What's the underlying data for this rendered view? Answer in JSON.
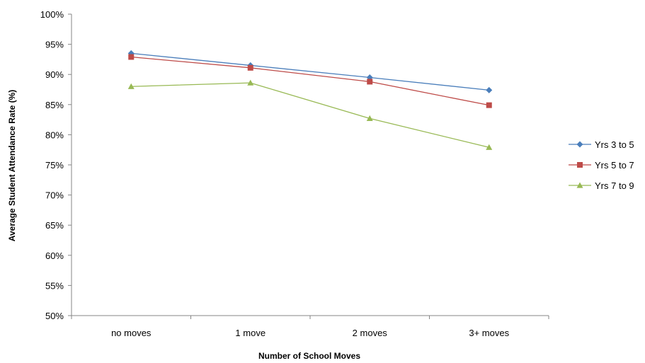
{
  "chart_data": {
    "type": "line",
    "title": "",
    "xlabel": "Number of School Moves",
    "ylabel": "Average Student Attendance Rate (%)",
    "categories": [
      "no moves",
      "1 move",
      "2 moves",
      "3+ moves"
    ],
    "ylim": [
      50,
      100
    ],
    "ytick_step": 5,
    "ytick_labels": [
      "50%",
      "55%",
      "60%",
      "65%",
      "70%",
      "75%",
      "80%",
      "85%",
      "90%",
      "95%",
      "100%"
    ],
    "grid": false,
    "legend_position": "right",
    "series": [
      {
        "name": "Yrs 3 to 5",
        "color": "#4A7EBB",
        "marker": "diamond",
        "values": [
          93.5,
          91.5,
          89.5,
          87.4
        ]
      },
      {
        "name": "Yrs 5 to 7",
        "color": "#BE4B48",
        "marker": "square",
        "values": [
          92.9,
          91.1,
          88.8,
          84.9
        ]
      },
      {
        "name": "Yrs 7 to 9",
        "color": "#98B954",
        "marker": "triangle",
        "values": [
          88.0,
          88.6,
          82.7,
          77.9
        ]
      }
    ]
  }
}
